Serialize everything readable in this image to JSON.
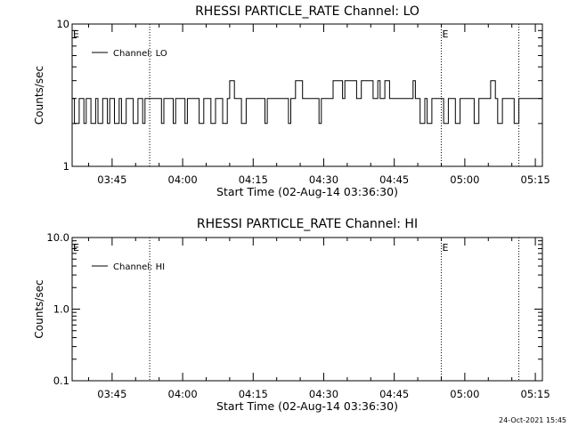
{
  "footer": {
    "timestamp": "24-Oct-2021 15:45"
  },
  "chart_data": [
    {
      "type": "line",
      "title": "RHESSI PARTICLE_RATE Channel: LO",
      "xlabel": "Start Time (02-Aug-14 03:36:30)",
      "ylabel": "Counts/sec",
      "y_scale": "log",
      "ylim": [
        1,
        10
      ],
      "y_ticks": [
        {
          "v": 1,
          "label": "1"
        },
        {
          "v": 10,
          "label": "10"
        }
      ],
      "xlim": [
        "03:36:30",
        "05:16:30"
      ],
      "x_ticks": [
        {
          "t": "03:45",
          "label": "03:45"
        },
        {
          "t": "04:00",
          "label": "04:00"
        },
        {
          "t": "04:15",
          "label": "04:15"
        },
        {
          "t": "04:30",
          "label": "04:30"
        },
        {
          "t": "04:45",
          "label": "04:45"
        },
        {
          "t": "05:00",
          "label": "05:00"
        },
        {
          "t": "05:15",
          "label": "05:15"
        }
      ],
      "event_marks": [
        {
          "t": "03:36:30",
          "label": "E",
          "dotted": false
        },
        {
          "t": "03:53:00",
          "label": "",
          "dotted": true
        },
        {
          "t": "04:55:00",
          "label": "E",
          "dotted": true
        },
        {
          "t": "05:11:30",
          "label": "",
          "dotted": true
        }
      ],
      "legend": {
        "position": "top-left"
      },
      "series": [
        {
          "name": "Channel: LO",
          "x": [
            "03:36:30",
            "03:37:00",
            "03:38:00",
            "03:39:00",
            "03:39:30",
            "03:40:30",
            "03:41:30",
            "03:42:00",
            "03:43:00",
            "03:44:00",
            "03:44:30",
            "03:45:30",
            "03:46:30",
            "03:47:00",
            "03:48:00",
            "03:49:00",
            "03:49:30",
            "03:50:30",
            "03:51:30",
            "03:52:00",
            "03:53:00",
            "03:54:30",
            "03:55:30",
            "03:56:00",
            "03:57:00",
            "03:58:00",
            "03:58:30",
            "03:59:30",
            "04:00:30",
            "04:01:00",
            "04:02:00",
            "04:03:30",
            "04:04:30",
            "04:05:00",
            "04:06:00",
            "04:07:00",
            "04:07:30",
            "04:08:30",
            "04:09:30",
            "04:10:00",
            "04:11:00",
            "04:12:00",
            "04:12:30",
            "04:13:30",
            "04:14:30",
            "04:15:00",
            "04:16:30",
            "04:17:30",
            "04:18:00",
            "04:19:00",
            "04:20:00",
            "04:20:30",
            "04:21:30",
            "04:22:30",
            "04:23:00",
            "04:24:00",
            "04:25:30",
            "04:26:30",
            "04:27:00",
            "04:28:00",
            "04:29:00",
            "04:29:30",
            "04:30:30",
            "04:31:30",
            "04:32:00",
            "04:33:00",
            "04:34:00",
            "04:34:30",
            "04:35:30",
            "04:36:30",
            "04:37:00",
            "04:38:00",
            "04:39:00",
            "04:39:30",
            "04:40:30",
            "04:41:30",
            "04:42:00",
            "04:43:00",
            "04:44:00",
            "04:44:30",
            "04:45:30",
            "04:46:30",
            "04:47:00",
            "04:48:00",
            "04:49:00",
            "04:49:30",
            "04:50:30",
            "04:51:30",
            "04:52:00",
            "04:53:00",
            "04:54:00",
            "04:54:30",
            "04:55:30",
            "04:56:30",
            "04:57:00",
            "04:58:00",
            "04:59:00",
            "04:59:30",
            "05:00:30",
            "05:01:30",
            "05:02:00",
            "05:03:00",
            "05:04:00",
            "05:04:30",
            "05:05:30",
            "05:06:30",
            "05:07:00",
            "05:08:00",
            "05:09:00",
            "05:09:30",
            "05:10:30",
            "05:11:30"
          ],
          "y": [
            3,
            2,
            3,
            2,
            3,
            2,
            3,
            2,
            3,
            2,
            3,
            2,
            3,
            2,
            3,
            3,
            2,
            3,
            2,
            3,
            3,
            3,
            2,
            3,
            3,
            2,
            3,
            3,
            2,
            3,
            3,
            2,
            3,
            3,
            2,
            3,
            3,
            2,
            3,
            4,
            3,
            3,
            2,
            3,
            3,
            3,
            3,
            2,
            3,
            3,
            3,
            3,
            3,
            2,
            3,
            4,
            3,
            3,
            3,
            3,
            2,
            3,
            3,
            3,
            4,
            4,
            3,
            4,
            4,
            4,
            3,
            4,
            4,
            4,
            3,
            4,
            3,
            4,
            3,
            3,
            3,
            3,
            3,
            3,
            4,
            3,
            2,
            3,
            2,
            3,
            3,
            3,
            2,
            3,
            3,
            2,
            3,
            3,
            3,
            3,
            2,
            3,
            3,
            3,
            4,
            3,
            2,
            3,
            3,
            3,
            2,
            3
          ]
        }
      ]
    },
    {
      "type": "line",
      "title": "RHESSI PARTICLE_RATE Channel: HI",
      "xlabel": "Start Time (02-Aug-14 03:36:30)",
      "ylabel": "Counts/sec",
      "y_scale": "log",
      "ylim": [
        0.1,
        10
      ],
      "y_ticks": [
        {
          "v": 0.1,
          "label": "0.1"
        },
        {
          "v": 1,
          "label": "1.0"
        },
        {
          "v": 10,
          "label": "10.0"
        }
      ],
      "xlim": [
        "03:36:30",
        "05:16:30"
      ],
      "x_ticks": [
        {
          "t": "03:45",
          "label": "03:45"
        },
        {
          "t": "04:00",
          "label": "04:00"
        },
        {
          "t": "04:15",
          "label": "04:15"
        },
        {
          "t": "04:30",
          "label": "04:30"
        },
        {
          "t": "04:45",
          "label": "04:45"
        },
        {
          "t": "05:00",
          "label": "05:00"
        },
        {
          "t": "05:15",
          "label": "05:15"
        }
      ],
      "event_marks": [
        {
          "t": "03:36:30",
          "label": "E",
          "dotted": false
        },
        {
          "t": "03:53:00",
          "label": "",
          "dotted": true
        },
        {
          "t": "04:55:00",
          "label": "E",
          "dotted": true
        },
        {
          "t": "05:11:30",
          "label": "",
          "dotted": true
        }
      ],
      "legend": {
        "position": "top-left"
      },
      "series": [
        {
          "name": "Channel: HI",
          "x": [],
          "y": []
        }
      ]
    }
  ]
}
